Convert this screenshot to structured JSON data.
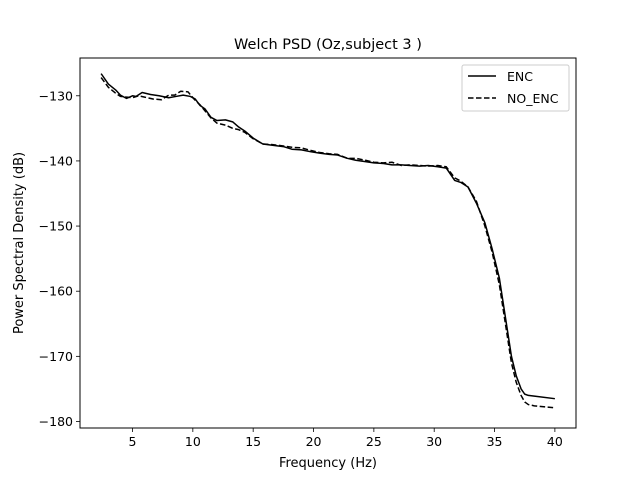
{
  "chart_data": {
    "type": "line",
    "title": "Welch PSD (Oz,subject 3 )",
    "xlabel": "Frequency (Hz)",
    "ylabel": "Power Spectral Density (dB)",
    "xlim": [
      0.65,
      41.75
    ],
    "ylim": [
      -181.0,
      -124.2
    ],
    "xticks": [
      5,
      10,
      15,
      20,
      25,
      30,
      35,
      40
    ],
    "xtick_labels": [
      "5",
      "10",
      "15",
      "20",
      "25",
      "30",
      "35",
      "40"
    ],
    "yticks": [
      -130,
      -140,
      -150,
      -160,
      -170,
      -180
    ],
    "ytick_labels": [
      "−130",
      "−140",
      "−150",
      "−160",
      "−170",
      "−180"
    ],
    "grid": false,
    "legend_position": "top-right",
    "series": [
      {
        "name": "ENC",
        "style": "solid",
        "color": "#000000",
        "x": [
          2.4,
          3.0,
          3.6,
          4.0,
          4.5,
          5.0,
          5.3,
          5.8,
          6.5,
          7.2,
          8.0,
          8.6,
          9.2,
          9.8,
          10.2,
          10.6,
          11.0,
          11.5,
          12.0,
          12.7,
          13.3,
          13.8,
          14.3,
          15.0,
          15.8,
          16.6,
          17.5,
          18.2,
          19.0,
          19.8,
          20.5,
          21.3,
          22.0,
          22.8,
          23.5,
          24.3,
          25.0,
          25.8,
          26.5,
          27.3,
          28.0,
          28.8,
          29.5,
          30.3,
          31.0,
          31.7,
          32.2,
          32.8,
          33.5,
          34.2,
          34.8,
          35.4,
          35.9,
          36.4,
          36.8,
          37.2,
          37.5,
          37.8,
          38.3,
          40.0
        ],
        "y": [
          -126.6,
          -128.2,
          -129.1,
          -129.9,
          -130.4,
          -130.0,
          -130.1,
          -129.5,
          -129.8,
          -130.0,
          -130.3,
          -130.1,
          -129.9,
          -130.1,
          -130.5,
          -131.5,
          -132.0,
          -133.3,
          -133.8,
          -133.7,
          -134.0,
          -134.8,
          -135.4,
          -136.5,
          -137.4,
          -137.6,
          -137.8,
          -138.2,
          -138.3,
          -138.6,
          -138.8,
          -139.0,
          -139.1,
          -139.6,
          -139.9,
          -140.1,
          -140.3,
          -140.4,
          -140.6,
          -140.6,
          -140.7,
          -140.8,
          -140.7,
          -140.9,
          -141.1,
          -143.0,
          -143.3,
          -144.0,
          -146.5,
          -149.5,
          -153.5,
          -158.0,
          -164.0,
          -170.0,
          -173.0,
          -175.0,
          -175.8,
          -176.0,
          -176.1,
          -176.5
        ]
      },
      {
        "name": "NO_ENC",
        "style": "dashed",
        "color": "#000000",
        "x": [
          2.4,
          3.0,
          3.6,
          4.0,
          4.5,
          5.0,
          5.5,
          6.0,
          6.7,
          7.4,
          8.0,
          8.5,
          9.0,
          9.6,
          10.1,
          10.6,
          11.0,
          11.5,
          12.0,
          12.7,
          13.3,
          13.8,
          14.3,
          15.0,
          15.8,
          16.6,
          17.5,
          18.2,
          19.0,
          19.8,
          20.5,
          21.3,
          22.0,
          22.8,
          23.5,
          24.3,
          25.0,
          25.8,
          26.5,
          27.3,
          28.0,
          28.8,
          29.5,
          30.3,
          31.0,
          31.7,
          32.2,
          32.8,
          33.5,
          34.2,
          34.8,
          35.4,
          35.9,
          36.4,
          36.8,
          37.2,
          37.5,
          37.8,
          38.3,
          40.0
        ],
        "y": [
          -127.2,
          -128.7,
          -129.6,
          -130.1,
          -130.2,
          -130.3,
          -130.0,
          -130.2,
          -130.5,
          -130.6,
          -129.9,
          -129.9,
          -129.3,
          -129.4,
          -130.5,
          -131.4,
          -132.3,
          -133.4,
          -134.2,
          -134.5,
          -135.0,
          -135.2,
          -135.6,
          -136.6,
          -137.4,
          -137.5,
          -137.7,
          -137.9,
          -138.0,
          -138.4,
          -138.7,
          -138.9,
          -139.0,
          -139.6,
          -139.6,
          -139.9,
          -140.2,
          -140.3,
          -140.2,
          -140.7,
          -140.6,
          -140.7,
          -140.8,
          -140.7,
          -140.9,
          -142.6,
          -143.1,
          -144.0,
          -146.2,
          -150.0,
          -154.0,
          -159.0,
          -165.0,
          -171.0,
          -174.0,
          -176.0,
          -177.0,
          -177.4,
          -177.6,
          -177.9
        ]
      }
    ]
  }
}
